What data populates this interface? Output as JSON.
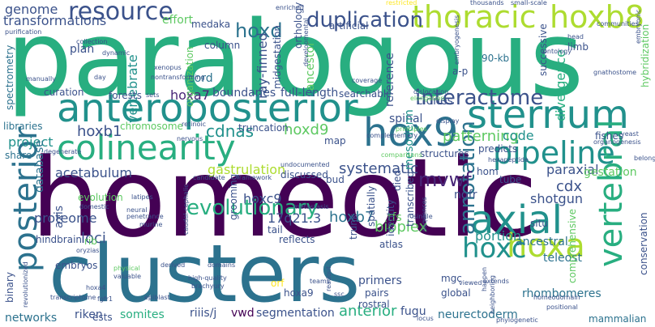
{
  "palette": {
    "c1": "#440154",
    "c2": "#482677",
    "c3": "#3b528b",
    "c4": "#2c728e",
    "c5": "#21918c",
    "c6": "#28ae80",
    "c7": "#5ec962",
    "c8": "#addc30",
    "c9": "#fde725"
  },
  "words": [
    {
      "id": "paralogous",
      "text": "paralogous"
    },
    {
      "id": "homeotic",
      "text": "homeotic"
    },
    {
      "id": "clusters",
      "text": "clusters"
    },
    {
      "id": "anteroposterior",
      "text": "anteroposterior"
    },
    {
      "id": "colinearity",
      "text": "colinearity"
    },
    {
      "id": "hox9",
      "text": "hox9"
    },
    {
      "id": "sternum",
      "text": "sternum"
    },
    {
      "id": "axial",
      "text": "axial"
    },
    {
      "id": "hoxa",
      "text": "hoxa"
    },
    {
      "id": "hoxc",
      "text": "hoxc"
    },
    {
      "id": "pipeline",
      "text": "pipeline"
    },
    {
      "id": "thoracic",
      "text": "thoracic"
    },
    {
      "id": "hoxb8",
      "text": "hoxb8"
    },
    {
      "id": "resource",
      "text": "resource"
    },
    {
      "id": "posterior",
      "text": "posterior"
    },
    {
      "id": "vertebral",
      "text": "vertebral"
    },
    {
      "id": "interactome",
      "text": "interactome"
    },
    {
      "id": "duplication",
      "text": "duplication"
    },
    {
      "id": "hoxd",
      "text": "hoxd"
    },
    {
      "id": "annotation",
      "text": "annotation"
    },
    {
      "id": "evolutionary",
      "text": "evolutionary"
    },
    {
      "id": "mvwf",
      "text": "mvwf"
    },
    {
      "id": "acetabulum",
      "text": "acetabulum"
    },
    {
      "id": "systematic",
      "text": "systematic"
    },
    {
      "id": "cdnas",
      "text": "cdnas"
    },
    {
      "id": "hoxd9",
      "text": "hoxd9"
    },
    {
      "id": "hoxb1",
      "text": "hoxb1"
    },
    {
      "id": "hoxa7",
      "text": "hoxa7"
    },
    {
      "id": "genome",
      "text": "genome"
    },
    {
      "id": "transformations",
      "text": "transformations"
    },
    {
      "id": "vertebrate",
      "text": "vertebrate"
    },
    {
      "id": "cord",
      "text": "cord"
    },
    {
      "id": "column",
      "text": "column"
    },
    {
      "id": "project",
      "text": "project"
    },
    {
      "id": "spinal",
      "text": "spinal"
    },
    {
      "id": "patterning",
      "text": "patterning"
    },
    {
      "id": "code",
      "text": "code"
    },
    {
      "id": "paraxial",
      "text": "paraxial"
    },
    {
      "id": "divergence",
      "text": "divergence"
    },
    {
      "id": "gastrulation",
      "text": "gastrulation"
    },
    {
      "id": "hoxc9",
      "text": "hoxc9"
    },
    {
      "id": "cdx",
      "text": "cdx"
    },
    {
      "id": "shotgun",
      "text": "shotgun"
    },
    {
      "id": "17q21",
      "text": "17q21.3"
    },
    {
      "id": "hoxb7",
      "text": "hoxb7"
    },
    {
      "id": "bioplex",
      "text": "bioplex"
    },
    {
      "id": "tfs",
      "text": "tfs"
    },
    {
      "id": "proteome",
      "text": "proteome"
    },
    {
      "id": "portion",
      "text": "portion"
    },
    {
      "id": "ancestral",
      "text": "ancestral"
    },
    {
      "id": "teleost",
      "text": "teleost"
    },
    {
      "id": "loci",
      "text": "loci"
    },
    {
      "id": "somites",
      "text": "somites"
    },
    {
      "id": "riiis",
      "text": "riiis/j"
    },
    {
      "id": "vwd",
      "text": "vwd"
    },
    {
      "id": "segmentation",
      "text": "segmentation"
    },
    {
      "id": "anterior",
      "text": "anterior"
    },
    {
      "id": "fugu",
      "text": "fugu"
    },
    {
      "id": "riken",
      "text": "riken"
    },
    {
      "id": "networks",
      "text": "networks"
    },
    {
      "id": "neurectoderm",
      "text": "neurectoderm"
    },
    {
      "id": "rhombomeres",
      "text": "rhombomeres"
    },
    {
      "id": "mesoderm",
      "text": "mesoderm"
    },
    {
      "id": "forests",
      "text": "forests"
    },
    {
      "id": "boundaries",
      "text": "boundaries"
    },
    {
      "id": "full-length",
      "text": "full-length"
    },
    {
      "id": "searchable",
      "text": "searchable"
    },
    {
      "id": "clones",
      "text": "clones"
    },
    {
      "id": "ray-finned",
      "text": "ray-finned"
    },
    {
      "id": "ancestor",
      "text": "ancestor"
    },
    {
      "id": "reference",
      "text": "reference"
    },
    {
      "id": "effort",
      "text": "effort"
    },
    {
      "id": "medaka",
      "text": "medaka"
    },
    {
      "id": "plan",
      "text": "plan"
    },
    {
      "id": "curation",
      "text": "curation"
    },
    {
      "id": "libraries",
      "text": "libraries"
    },
    {
      "id": "share",
      "text": "share"
    },
    {
      "id": "database",
      "text": "database"
    },
    {
      "id": "axis",
      "text": "axis"
    },
    {
      "id": "evolution",
      "text": "evolution"
    },
    {
      "id": "map",
      "text": "map"
    },
    {
      "id": "bud",
      "text": "bud"
    },
    {
      "id": "chromosome",
      "text": "chromosome"
    },
    {
      "id": "truncation",
      "text": "truncation"
    },
    {
      "id": "discussed",
      "text": "discussed"
    },
    {
      "id": "structures",
      "text": "structures"
    },
    {
      "id": "died",
      "text": "died"
    },
    {
      "id": "hom",
      "text": "hom"
    },
    {
      "id": "tube",
      "text": "tube"
    },
    {
      "id": "ngfr",
      "text": "ngfr"
    },
    {
      "id": "gestation",
      "text": "gestation"
    },
    {
      "id": "grooming",
      "text": "grooming"
    },
    {
      "id": "spatially",
      "text": "spatially"
    },
    {
      "id": "identity",
      "text": "identity"
    },
    {
      "id": "transcribed",
      "text": "transcribed"
    },
    {
      "id": "situ",
      "text": "situ"
    },
    {
      "id": "trunk",
      "text": "trunk"
    },
    {
      "id": "tail",
      "text": "tail"
    },
    {
      "id": "reflects",
      "text": "reflects"
    },
    {
      "id": "atlas",
      "text": "atlas"
    },
    {
      "id": "primers",
      "text": "primers"
    },
    {
      "id": "pairs",
      "text": "pairs"
    },
    {
      "id": "rostral",
      "text": "rostral"
    },
    {
      "id": "hoxa9",
      "text": "hoxa9"
    },
    {
      "id": "orf",
      "text": "orf"
    },
    {
      "id": "mgc",
      "text": "mgc"
    },
    {
      "id": "global",
      "text": "global"
    },
    {
      "id": "comprehensive",
      "text": "comprehensive"
    },
    {
      "id": "conservation",
      "text": "conservation"
    },
    {
      "id": "mammalian",
      "text": "mammalian"
    },
    {
      "id": "hindbrain",
      "text": "hindbrain"
    },
    {
      "id": "rib",
      "text": "rib"
    },
    {
      "id": "embryos",
      "text": "embryos"
    },
    {
      "id": "binary",
      "text": "binary"
    },
    {
      "id": "ests",
      "text": "ests"
    },
    {
      "id": "fishes",
      "text": "fishes"
    },
    {
      "id": "predicts",
      "text": "predicts"
    },
    {
      "id": "hybridization",
      "text": "hybridization"
    },
    {
      "id": "successive",
      "text": "successive"
    },
    {
      "id": "limb",
      "text": "limb"
    },
    {
      "id": "ontology",
      "text": "ontology"
    },
    {
      "id": "90-kb",
      "text": "90-kb"
    },
    {
      "id": "a-p",
      "text": "a-p"
    },
    {
      "id": "organization",
      "text": "organization"
    },
    {
      "id": "midgestation",
      "text": "midgestation"
    },
    {
      "id": "orthology",
      "text": "orthology"
    },
    {
      "id": "artificial",
      "text": "artificial"
    },
    {
      "id": "spectrometry",
      "text": "spectrometry"
    },
    {
      "id": "revolutionized",
      "text": "revolutionized"
    },
    {
      "id": "embryonic",
      "text": "embryonic"
    },
    {
      "id": "dynamic",
      "text": "dynamic"
    },
    {
      "id": "collection",
      "text": "collection"
    },
    {
      "id": "purification",
      "text": "purification"
    },
    {
      "id": "manually",
      "text": "manually"
    },
    {
      "id": "day",
      "text": "day"
    },
    {
      "id": "coverage",
      "text": "coverage"
    },
    {
      "id": "developmental",
      "text": "developmental"
    },
    {
      "id": "dislocation",
      "text": "dislocation"
    },
    {
      "id": "elongation",
      "text": "elongation"
    },
    {
      "id": "display",
      "text": "display"
    },
    {
      "id": "principles",
      "text": "principles"
    },
    {
      "id": "complementary",
      "text": "complementary"
    },
    {
      "id": "comparisons",
      "text": "comparisons"
    },
    {
      "id": "hexapeptide",
      "text": "hexapeptide"
    },
    {
      "id": "organogenesis",
      "text": "organogenesis"
    },
    {
      "id": "yeast",
      "text": "yeast"
    },
    {
      "id": "thousands",
      "text": "thousands"
    },
    {
      "id": "small-scale",
      "text": "small-scale"
    },
    {
      "id": "enriched",
      "text": "enriched"
    },
    {
      "id": "restricted",
      "text": "restricted"
    },
    {
      "id": "communities",
      "text": "communities"
    },
    {
      "id": "head",
      "text": "head"
    },
    {
      "id": "gnathostome",
      "text": "gnathostome"
    },
    {
      "id": "xenopus",
      "text": "xenopus"
    },
    {
      "id": "nontransforming",
      "text": "nontransforming"
    },
    {
      "id": "retinoic",
      "text": "retinoic"
    },
    {
      "id": "nervous",
      "text": "nervous"
    },
    {
      "id": "sets",
      "text": "sets"
    },
    {
      "id": "degenerate",
      "text": "degenerate"
    },
    {
      "id": "candidate",
      "text": "candidate"
    },
    {
      "id": "framework",
      "text": "framework"
    },
    {
      "id": "undocumented",
      "text": "undocumented"
    },
    {
      "id": "domestic",
      "text": "domestic"
    },
    {
      "id": "latipes",
      "text": "latipes"
    },
    {
      "id": "neural",
      "text": "neural"
    },
    {
      "id": "penetrance",
      "text": "penetrance"
    },
    {
      "id": "murine",
      "text": "murine"
    },
    {
      "id": "caudal-cephalic",
      "text": "caudal-cephalic"
    },
    {
      "id": "metastasis",
      "text": "metastasis"
    },
    {
      "id": "single",
      "text": "single"
    },
    {
      "id": "sequences",
      "text": "sequences"
    },
    {
      "id": "oryzias",
      "text": "oryzias"
    },
    {
      "id": "physical",
      "text": "physical"
    },
    {
      "id": "valuable",
      "text": "valuable"
    },
    {
      "id": "derived",
      "text": "derived"
    },
    {
      "id": "domains",
      "text": "domains"
    },
    {
      "id": "hoxa4",
      "text": "hoxa4"
    },
    {
      "id": "high-quality",
      "text": "high-quality"
    },
    {
      "id": "brachyury",
      "text": "brachyury"
    },
    {
      "id": "transcriptome",
      "text": "transcriptome"
    },
    {
      "id": "fgfr1",
      "text": "fgfr1"
    },
    {
      "id": "epiblast",
      "text": "epiblast"
    },
    {
      "id": "readout",
      "text": "readout"
    },
    {
      "id": "teams",
      "text": "teams"
    },
    {
      "id": "ssc",
      "text": "ssc"
    },
    {
      "id": "happen",
      "text": "happen"
    },
    {
      "id": "extends",
      "text": "extends"
    },
    {
      "id": "viewed",
      "text": "viewed"
    },
    {
      "id": "homeodomain",
      "text": "homeodomain"
    },
    {
      "id": "positional",
      "text": "positional"
    },
    {
      "id": "phylogenetic",
      "text": "phylogenetic"
    },
    {
      "id": "locus",
      "text": "locus"
    },
    {
      "id": "neighboring",
      "text": "neighboring"
    },
    {
      "id": "belong",
      "text": "belong"
    },
    {
      "id": "embryogenesis",
      "text": "embryogenesis"
    }
  ]
}
